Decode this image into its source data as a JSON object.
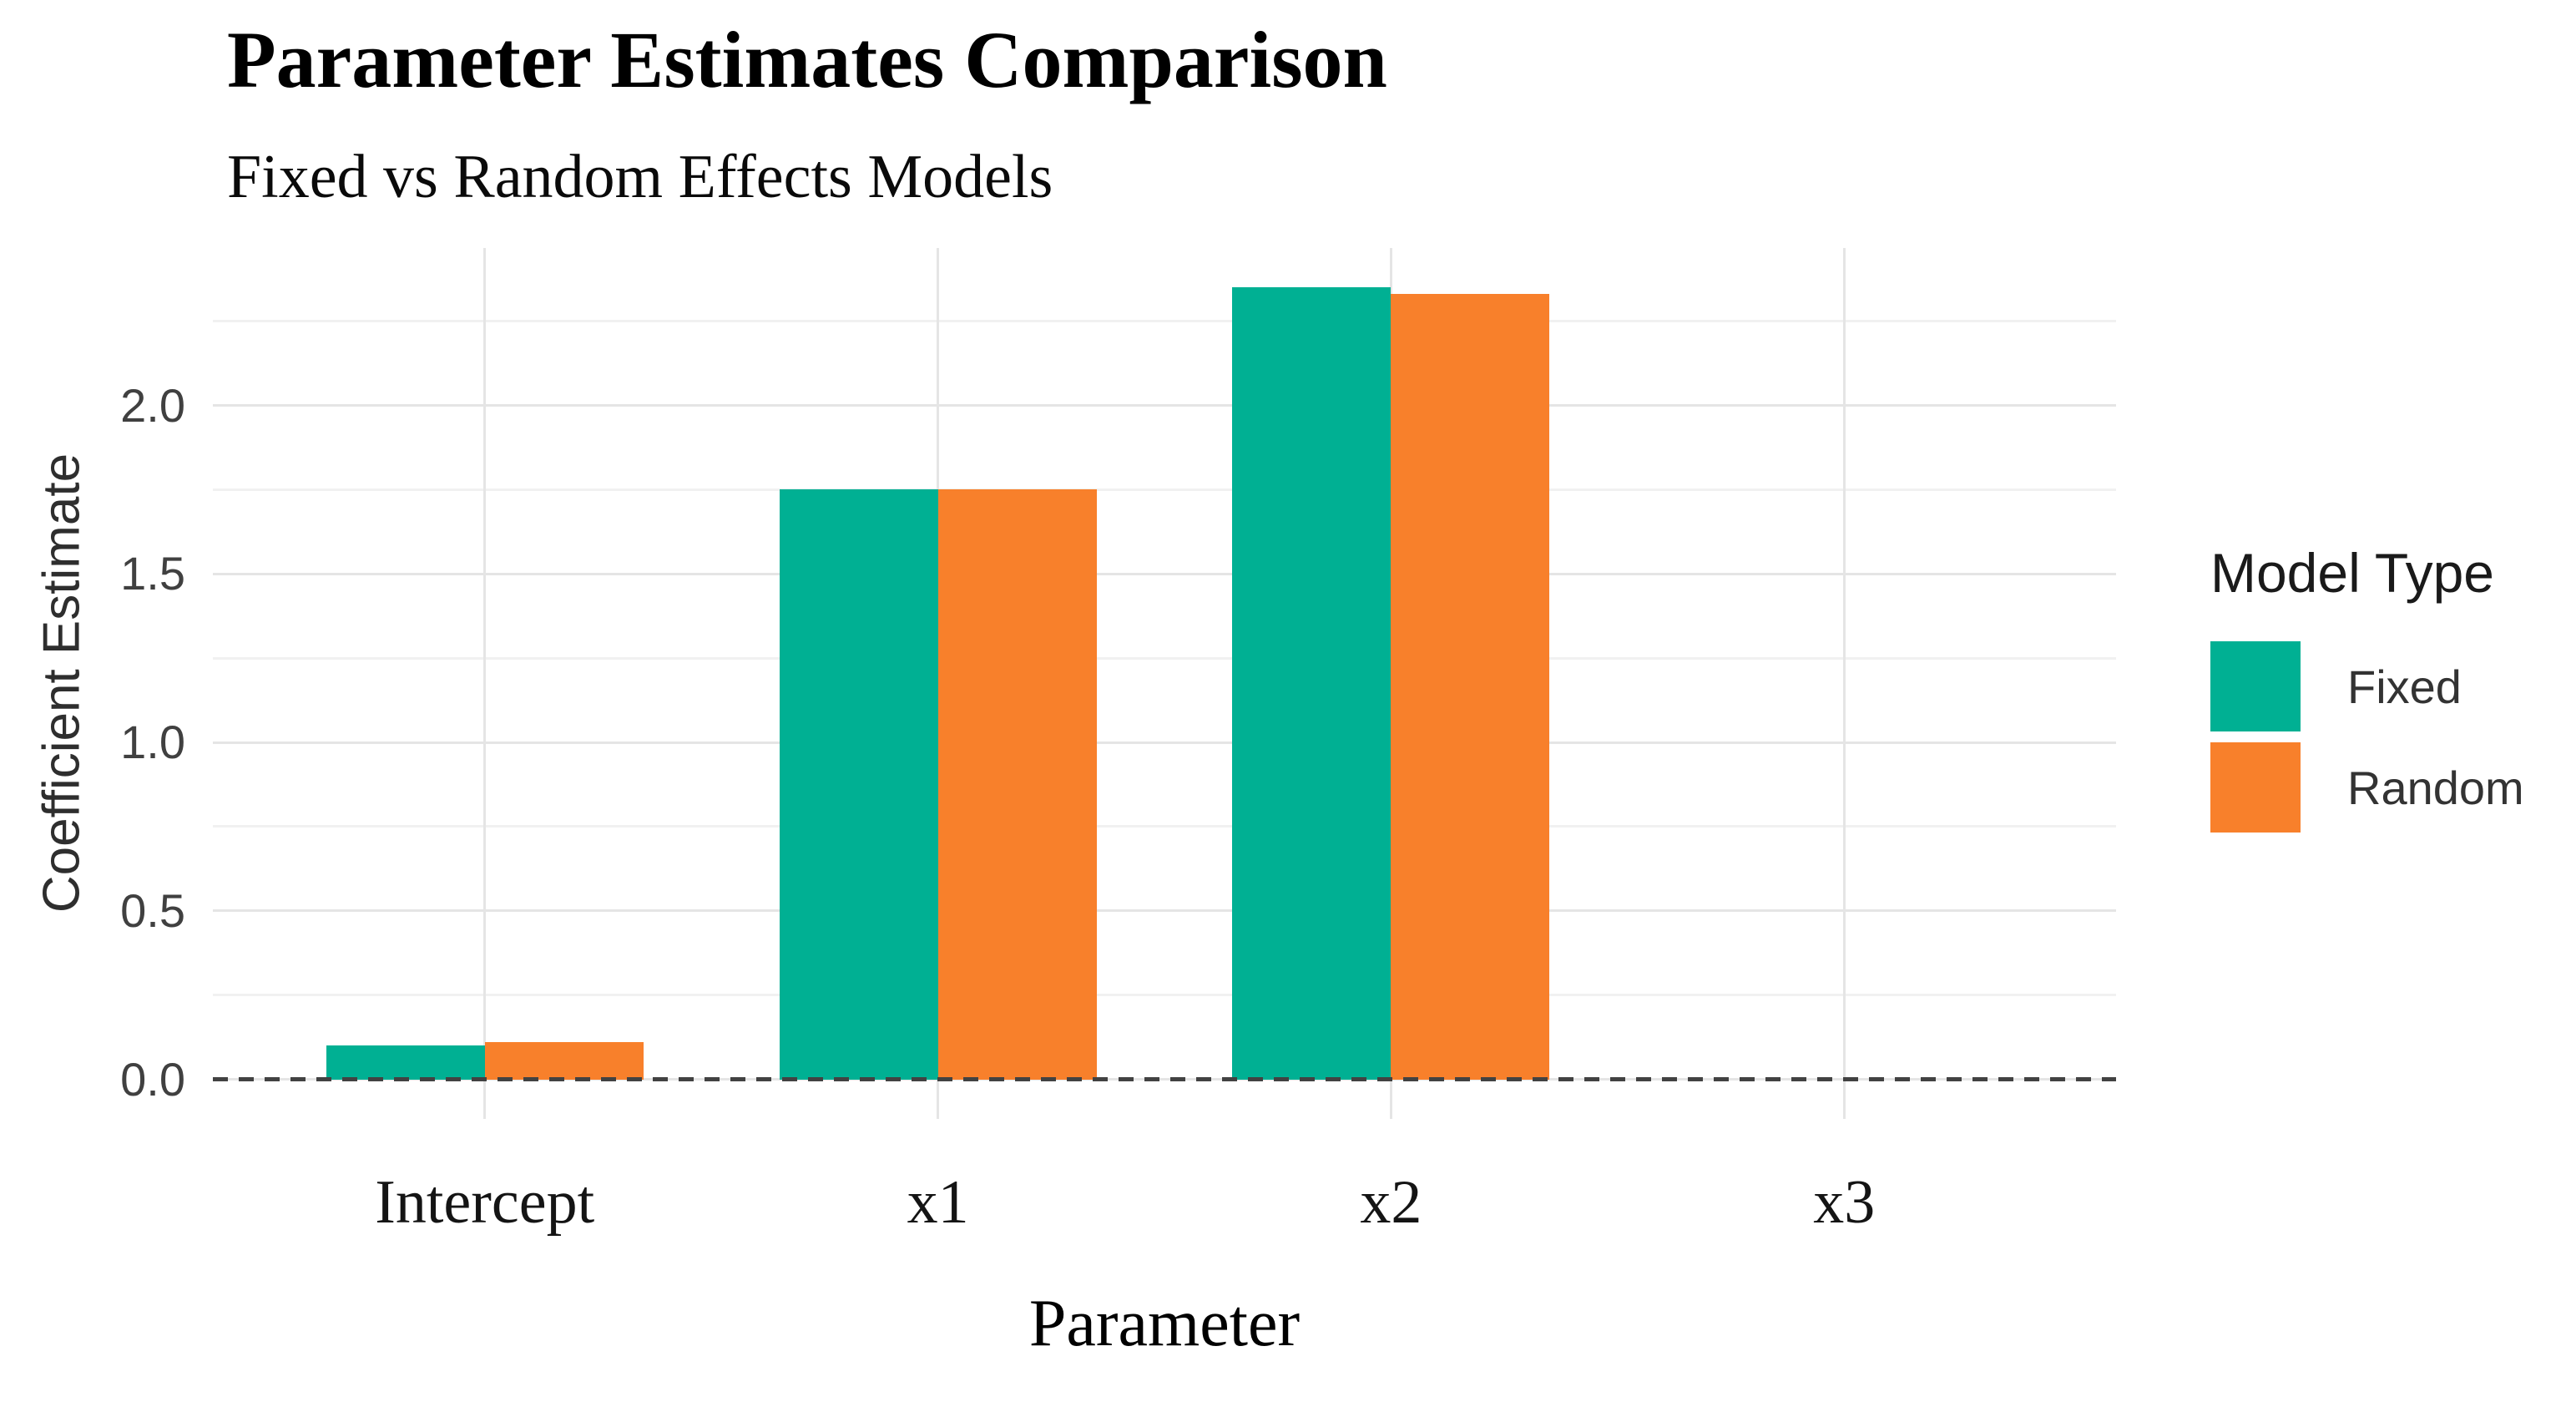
{
  "chart_data": {
    "type": "bar",
    "title": "Parameter Estimates Comparison",
    "subtitle": "Fixed vs Random Effects Models",
    "xlabel": "Parameter",
    "ylabel": "Coefficient Estimate",
    "categories": [
      "Intercept",
      "x1",
      "x2",
      "x3"
    ],
    "series": [
      {
        "name": "Fixed",
        "color": "#00B093",
        "values": [
          0.1,
          1.75,
          2.35,
          0.0
        ]
      },
      {
        "name": "Random",
        "color": "#F8802B",
        "values": [
          0.11,
          1.75,
          2.33,
          0.0
        ]
      }
    ],
    "y_ticks": {
      "labels": [
        "0.0",
        "0.5",
        "1.0",
        "1.5",
        "2.0"
      ],
      "values": [
        0,
        0.5,
        1.0,
        1.5,
        2.0
      ]
    },
    "y_minor_gridlines": [
      0.25,
      0.75,
      1.25,
      1.75,
      2.25
    ],
    "ylim": [
      -0.1175,
      2.4675
    ],
    "zero_line": {
      "value": 0,
      "style": "dashed",
      "color": "#424242"
    },
    "grid": {
      "horizontal": "major+minor",
      "vertical": "major at category centers",
      "major_color": "#E5E5E5",
      "minor_color": "#F1F1F1"
    },
    "legend": {
      "title": "Model Type",
      "position": "right"
    },
    "bar_width_fraction": 0.7,
    "category_expansion": 0.6,
    "background": "#FFFFFF"
  }
}
